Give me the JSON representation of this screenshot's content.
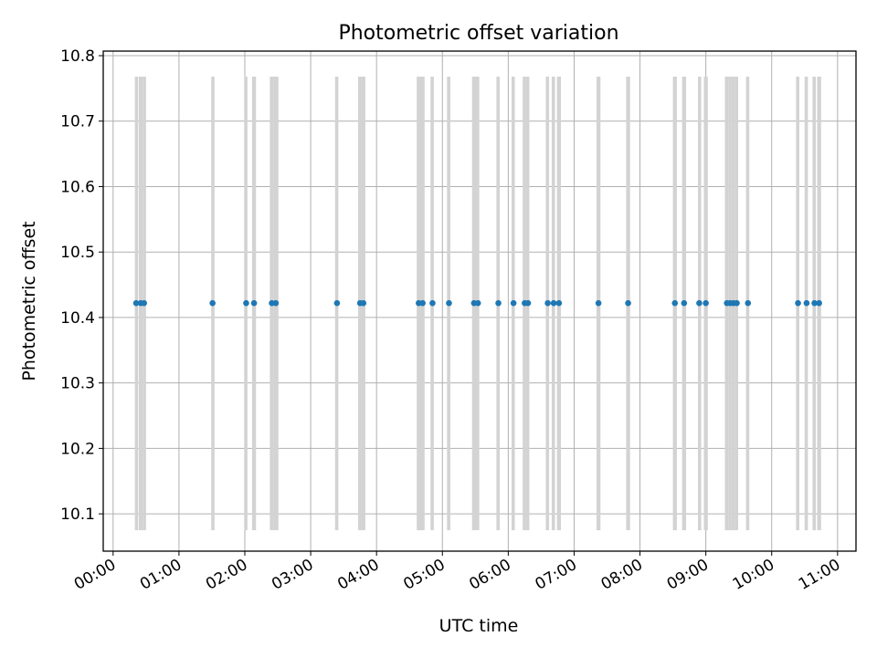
{
  "chart_data": {
    "type": "scatter",
    "title": "Photometric offset variation",
    "xlabel": "UTC time",
    "ylabel": "Photometric offset",
    "xlim": [
      -0.15,
      11.28
    ],
    "ylim": [
      10.043,
      10.807
    ],
    "grid": true,
    "x_ticks": [
      0,
      1,
      2,
      3,
      4,
      5,
      6,
      7,
      8,
      9,
      10,
      11
    ],
    "x_tick_labels": [
      "00:00",
      "01:00",
      "02:00",
      "03:00",
      "04:00",
      "05:00",
      "06:00",
      "07:00",
      "08:00",
      "09:00",
      "10:00",
      "11:00"
    ],
    "y_ticks": [
      10.1,
      10.2,
      10.3,
      10.4,
      10.5,
      10.6,
      10.7,
      10.8
    ],
    "y_tick_labels": [
      "10.1",
      "10.2",
      "10.3",
      "10.4",
      "10.5",
      "10.6",
      "10.7",
      "10.8"
    ],
    "band_range": [
      10.075,
      10.768
    ],
    "bands": [
      {
        "start": 0.33,
        "end": 0.38
      },
      {
        "start": 0.39,
        "end": 0.45
      },
      {
        "start": 0.45,
        "end": 0.5
      },
      {
        "start": 1.49,
        "end": 1.54
      },
      {
        "start": 1.99,
        "end": 2.04
      },
      {
        "start": 2.11,
        "end": 2.17
      },
      {
        "start": 2.38,
        "end": 2.44
      },
      {
        "start": 2.44,
        "end": 2.51
      },
      {
        "start": 3.37,
        "end": 3.42
      },
      {
        "start": 3.72,
        "end": 3.77
      },
      {
        "start": 3.77,
        "end": 3.83
      },
      {
        "start": 4.61,
        "end": 4.67
      },
      {
        "start": 4.67,
        "end": 4.73
      },
      {
        "start": 4.82,
        "end": 4.87
      },
      {
        "start": 5.07,
        "end": 5.12
      },
      {
        "start": 5.45,
        "end": 5.51
      },
      {
        "start": 5.51,
        "end": 5.56
      },
      {
        "start": 5.82,
        "end": 5.87
      },
      {
        "start": 6.05,
        "end": 6.1
      },
      {
        "start": 6.22,
        "end": 6.27
      },
      {
        "start": 6.27,
        "end": 6.32
      },
      {
        "start": 6.57,
        "end": 6.62
      },
      {
        "start": 6.66,
        "end": 6.71
      },
      {
        "start": 6.74,
        "end": 6.8
      },
      {
        "start": 7.34,
        "end": 7.4
      },
      {
        "start": 7.79,
        "end": 7.85
      },
      {
        "start": 8.5,
        "end": 8.56
      },
      {
        "start": 8.64,
        "end": 8.7
      },
      {
        "start": 8.88,
        "end": 8.93
      },
      {
        "start": 8.97,
        "end": 9.03
      },
      {
        "start": 9.29,
        "end": 9.34
      },
      {
        "start": 9.34,
        "end": 9.39
      },
      {
        "start": 9.39,
        "end": 9.44
      },
      {
        "start": 9.44,
        "end": 9.49
      },
      {
        "start": 9.61,
        "end": 9.66
      },
      {
        "start": 10.37,
        "end": 10.42
      },
      {
        "start": 10.5,
        "end": 10.55
      },
      {
        "start": 10.62,
        "end": 10.67
      },
      {
        "start": 10.69,
        "end": 10.75
      }
    ],
    "series": [
      {
        "name": "Photometric offset",
        "color": "#1f77b4",
        "x": [
          0.35,
          0.42,
          0.47,
          1.51,
          2.02,
          2.14,
          2.41,
          2.47,
          3.4,
          3.75,
          3.8,
          4.64,
          4.7,
          4.85,
          5.1,
          5.48,
          5.54,
          5.85,
          6.08,
          6.25,
          6.3,
          6.6,
          6.69,
          6.77,
          7.37,
          7.82,
          8.53,
          8.67,
          8.9,
          9.0,
          9.32,
          9.37,
          9.42,
          9.47,
          9.64,
          10.4,
          10.53,
          10.65,
          10.72
        ],
        "y": [
          10.422,
          10.422,
          10.422,
          10.422,
          10.422,
          10.422,
          10.422,
          10.422,
          10.422,
          10.422,
          10.422,
          10.422,
          10.422,
          10.422,
          10.422,
          10.422,
          10.422,
          10.422,
          10.422,
          10.422,
          10.422,
          10.422,
          10.422,
          10.422,
          10.422,
          10.422,
          10.422,
          10.422,
          10.422,
          10.422,
          10.422,
          10.422,
          10.422,
          10.422,
          10.422,
          10.422,
          10.422,
          10.422,
          10.422
        ]
      }
    ],
    "colors": {
      "band": "#d3d3d3",
      "grid": "#b0b0b0",
      "point": "#1f77b4"
    }
  }
}
